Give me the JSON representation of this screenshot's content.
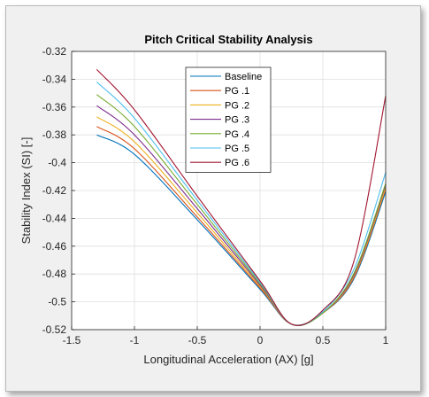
{
  "chart_data": {
    "type": "line",
    "title": "Pitch Critical Stability Analysis",
    "xlabel": "Longitudinal Acceleration (AX) [g]",
    "ylabel": "Stability Index (SI) [-]",
    "xlim": [
      -1.5,
      1
    ],
    "ylim": [
      -0.52,
      -0.32
    ],
    "xticks": [
      "-1.5",
      "-1",
      "-0.5",
      "0",
      "0.5",
      "1"
    ],
    "yticks": [
      "-0.32",
      "-0.34",
      "-0.36",
      "-0.38",
      "-0.4",
      "-0.42",
      "-0.44",
      "-0.46",
      "-0.48",
      "-0.5",
      "-0.52"
    ],
    "grid": true,
    "legend_position": "top-center",
    "x_range": [
      -1.3,
      1.0
    ],
    "series": [
      {
        "name": "Baseline",
        "color": "#0072BD",
        "x": [
          -1.3,
          -1.0,
          -0.5,
          0.0,
          0.25,
          0.5,
          0.75,
          1.0
        ],
        "values": [
          -0.38,
          -0.394,
          -0.441,
          -0.491,
          -0.516,
          -0.508,
          -0.483,
          -0.421
        ]
      },
      {
        "name": "PG .1",
        "color": "#D95319",
        "x": [
          -1.3,
          -1.0,
          -0.5,
          0.0,
          0.25,
          0.5,
          0.75,
          1.0
        ],
        "values": [
          -0.374,
          -0.39,
          -0.439,
          -0.49,
          -0.516,
          -0.508,
          -0.482,
          -0.419
        ]
      },
      {
        "name": "PG .2",
        "color": "#EDB120",
        "x": [
          -1.3,
          -1.0,
          -0.5,
          0.0,
          0.25,
          0.5,
          0.75,
          1.0
        ],
        "values": [
          -0.367,
          -0.385,
          -0.436,
          -0.489,
          -0.516,
          -0.508,
          -0.481,
          -0.418
        ]
      },
      {
        "name": "PG .3",
        "color": "#7E2F8E",
        "x": [
          -1.3,
          -1.0,
          -0.5,
          0.0,
          0.25,
          0.5,
          0.75,
          1.0
        ],
        "values": [
          -0.359,
          -0.38,
          -0.433,
          -0.488,
          -0.516,
          -0.508,
          -0.48,
          -0.416
        ]
      },
      {
        "name": "PG .4",
        "color": "#77AC30",
        "x": [
          -1.3,
          -1.0,
          -0.5,
          0.0,
          0.25,
          0.5,
          0.75,
          1.0
        ],
        "values": [
          -0.351,
          -0.374,
          -0.43,
          -0.487,
          -0.516,
          -0.508,
          -0.479,
          -0.415
        ]
      },
      {
        "name": "PG .5",
        "color": "#4DBEEE",
        "x": [
          -1.3,
          -1.0,
          -0.5,
          0.0,
          0.25,
          0.5,
          0.75,
          1.0
        ],
        "values": [
          -0.342,
          -0.368,
          -0.427,
          -0.486,
          -0.516,
          -0.507,
          -0.476,
          -0.407
        ]
      },
      {
        "name": "PG .6",
        "color": "#A2142F",
        "x": [
          -1.3,
          -1.0,
          -0.5,
          0.0,
          0.25,
          0.5,
          0.75,
          1.0
        ],
        "values": [
          -0.333,
          -0.362,
          -0.424,
          -0.485,
          -0.516,
          -0.506,
          -0.47,
          -0.352
        ]
      }
    ]
  }
}
